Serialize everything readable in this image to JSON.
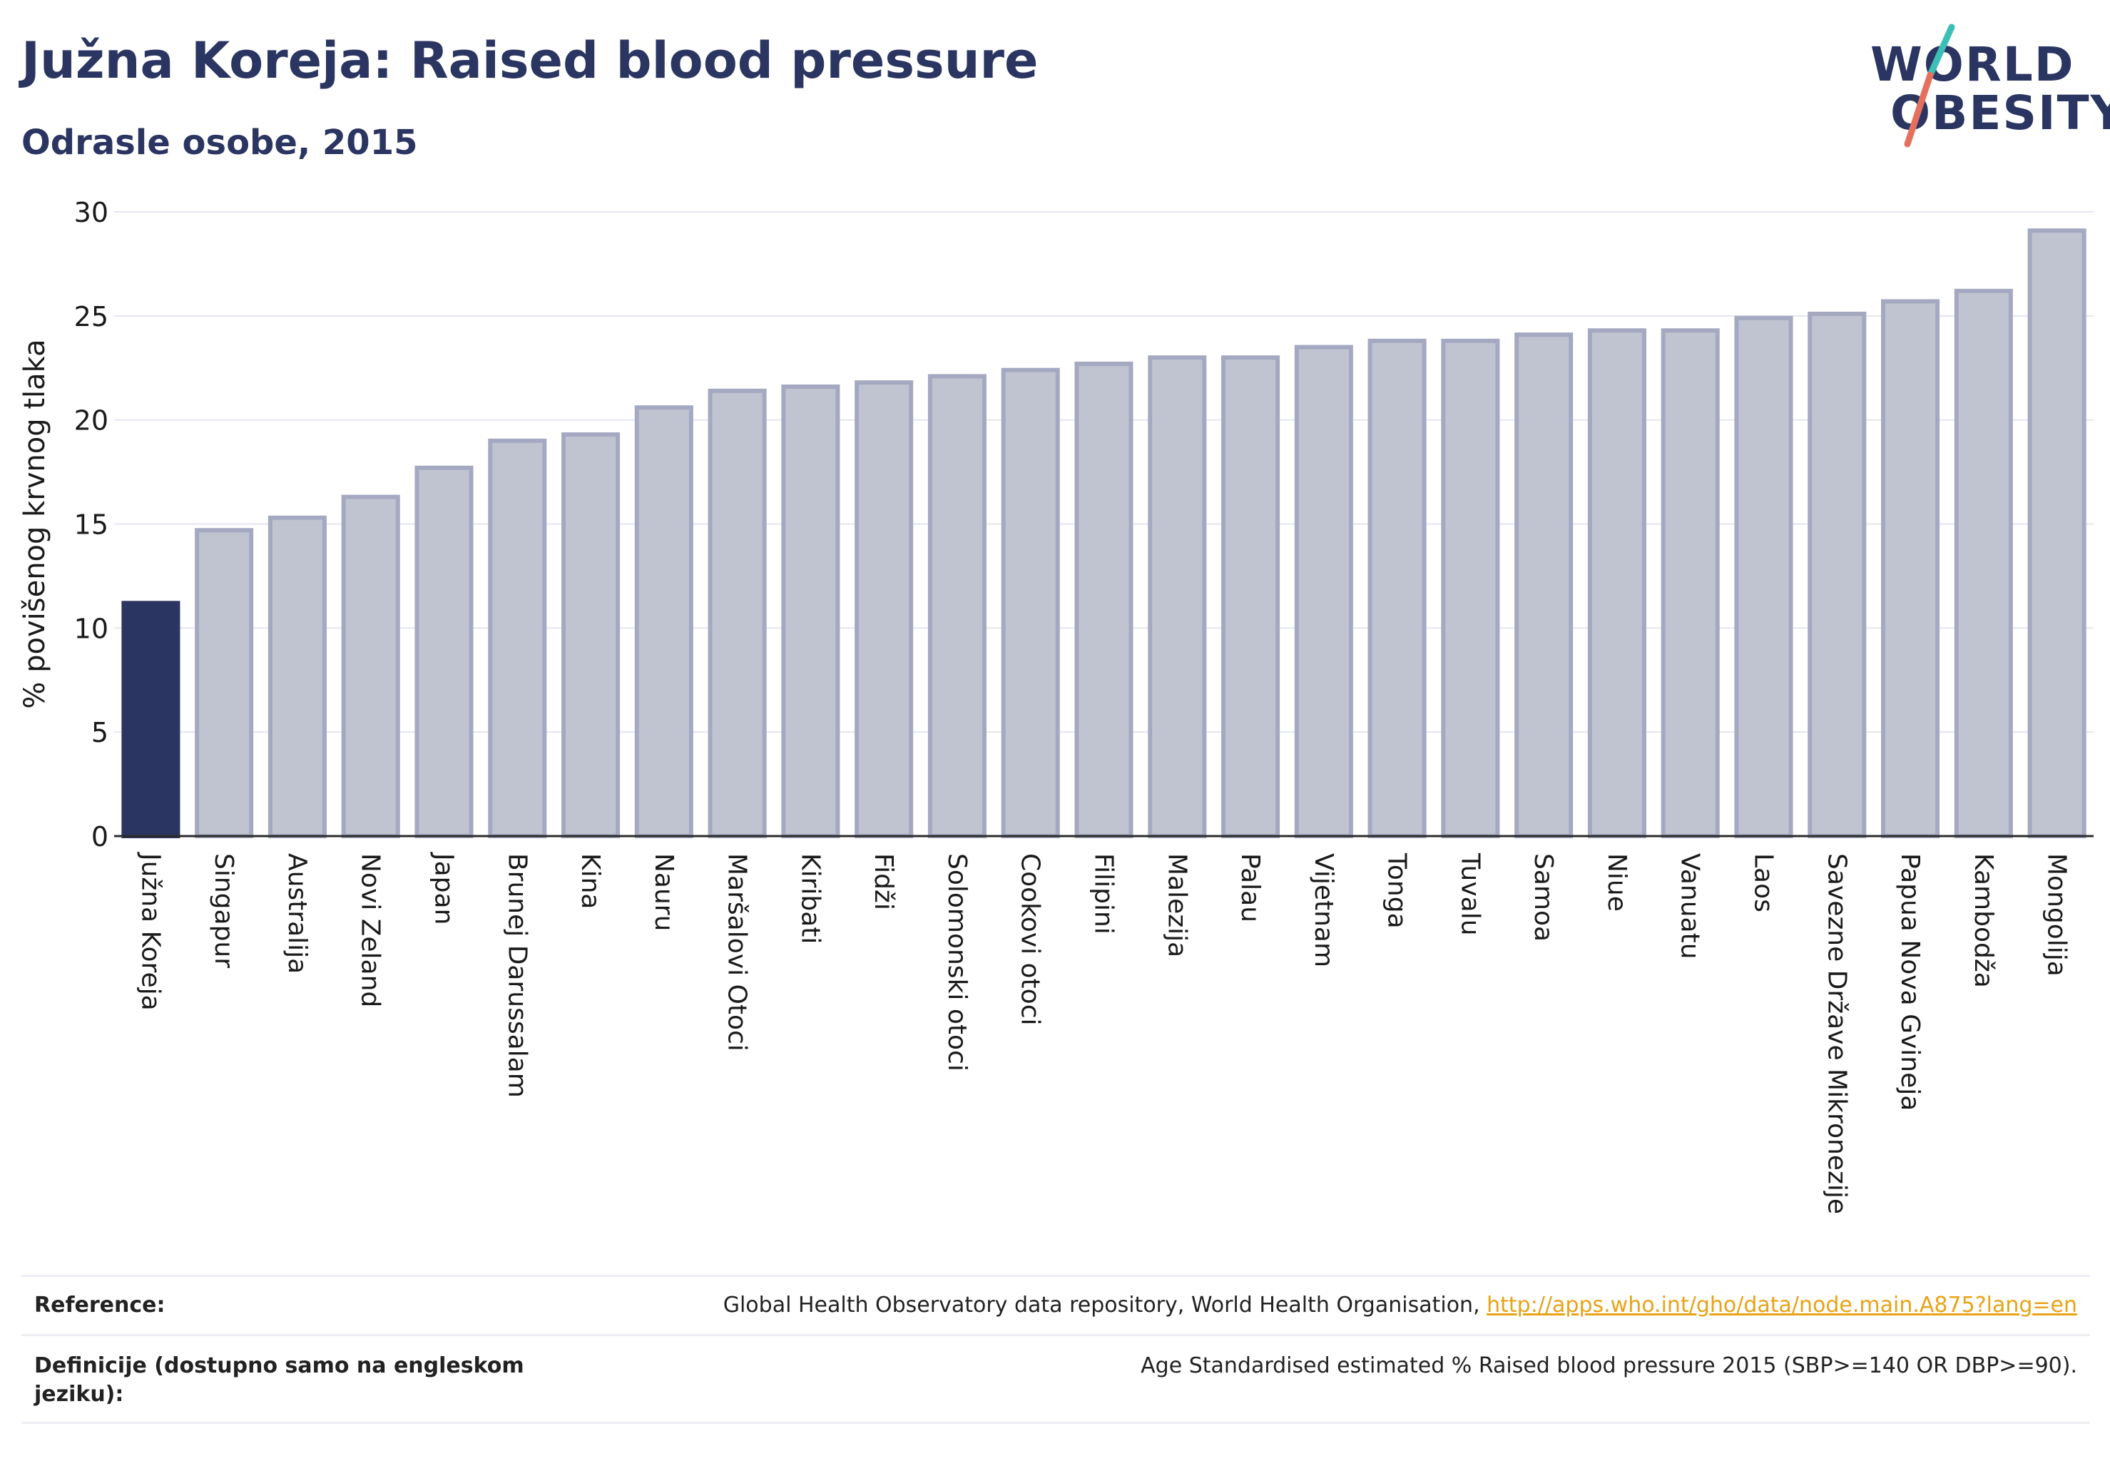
{
  "header": {
    "title": "Južna Koreja: Raised blood pressure",
    "subtitle": "Odrasle osobe, 2015"
  },
  "logo": {
    "line1": "WORLD",
    "line2": "OBESITY"
  },
  "colors": {
    "highlight_bar": "#2b3561",
    "other_bar_fill": "#c0c4d1",
    "other_bar_stroke": "#a4a9c1",
    "title": "#2b3561",
    "link": "#e8a317"
  },
  "chart_data": {
    "type": "bar",
    "ylabel": "% povišenog krvnog tlaka",
    "ylim": [
      0,
      30
    ],
    "yticks": [
      0,
      5,
      10,
      15,
      20,
      25,
      30
    ],
    "grid": true,
    "highlight": "Južna Koreja",
    "categories": [
      "Južna Koreja",
      "Singapur",
      "Australija",
      "Novi Zeland",
      "Japan",
      "Brunej Darussalam",
      "Kina",
      "Nauru",
      "Maršalovi Otoci",
      "Kiribati",
      "Fidži",
      "Solomonski otoci",
      "Cookovi otoci",
      "Filipini",
      "Malezija",
      "Palau",
      "Vijetnam",
      "Tonga",
      "Tuvalu",
      "Samoa",
      "Niue",
      "Vanuatu",
      "Laos",
      "Savezne Države Mikronezije",
      "Papua Nova Gvineja",
      "Kambodža",
      "Mongolija"
    ],
    "values": [
      11.2,
      14.7,
      15.3,
      16.3,
      17.7,
      19.0,
      19.3,
      20.6,
      21.4,
      21.6,
      21.8,
      22.1,
      22.4,
      22.7,
      23.0,
      23.0,
      23.5,
      23.8,
      23.8,
      24.1,
      24.3,
      24.3,
      24.9,
      25.1,
      25.7,
      26.2,
      29.1
    ]
  },
  "footer": {
    "reference_label": "Reference:",
    "reference_text": "Global Health Observatory data repository, World Health Organisation, ",
    "reference_link": "http://apps.who.int/gho/data/node.main.A875?lang=en",
    "definition_label": "Definicije (dostupno samo na engleskom jeziku):",
    "definition_text": "Age Standardised estimated % Raised blood pressure 2015 (SBP>=140 OR DBP>=90)."
  }
}
